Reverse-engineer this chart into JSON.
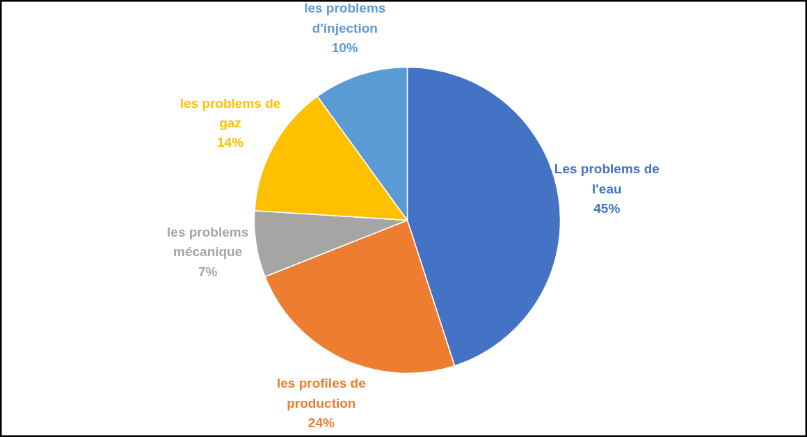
{
  "chart_data": {
    "type": "pie",
    "categories": [
      "Les problems de l'eau",
      "les profiles de production",
      "les problems mécanique",
      "les problems de gaz",
      "les problems d'injection"
    ],
    "values": [
      45,
      24,
      7,
      14,
      10
    ],
    "value_labels": [
      "45%",
      "24%",
      "7%",
      "14%",
      "10%"
    ],
    "colors": [
      "#4472c4",
      "#ed7d31",
      "#a5a5a5",
      "#ffc000",
      "#5b9bd5"
    ]
  }
}
